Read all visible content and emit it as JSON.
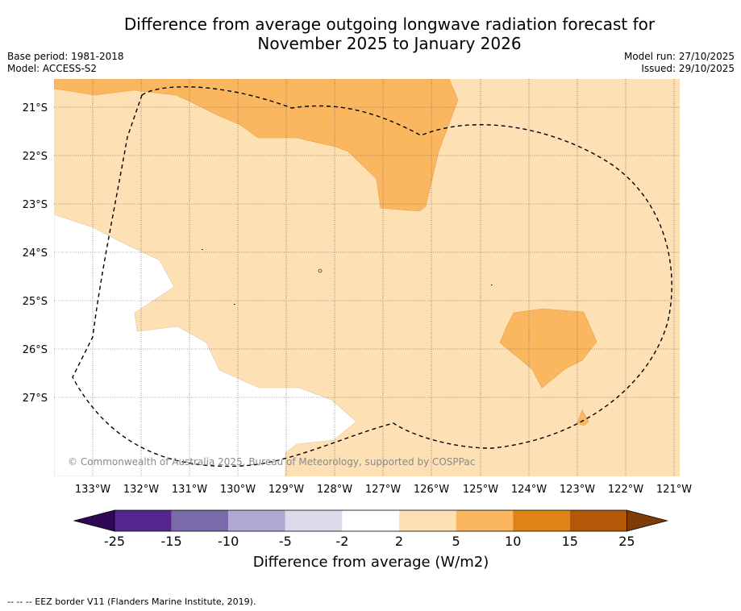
{
  "title_line1": "Difference from average outgoing longwave radiation forecast for",
  "title_line2": "November 2025 to January 2026",
  "base_period": "Base period: 1981-2018",
  "model": "Model: ACCESS-S2",
  "model_run": "Model run: 27/10/2025",
  "issued": "Issued: 29/10/2025",
  "copyright": "© Commonwealth of Australia 2025, Bureau of Meteorology, supported by COSPPac",
  "footnote": "--  --  -- EEZ border V11 (Flanders Marine Institute, 2019).",
  "lat_labels": [
    "21°S",
    "22°S",
    "23°S",
    "24°S",
    "25°S",
    "26°S",
    "27°S"
  ],
  "lon_labels": [
    "133°W",
    "132°W",
    "131°W",
    "130°W",
    "129°W",
    "128°W",
    "127°W",
    "126°W",
    "125°W",
    "124°W",
    "123°W",
    "122°W",
    "121°W"
  ],
  "colorbar": {
    "title": "Difference from average (W/m2)",
    "ticks": [
      "-25",
      "-15",
      "-10",
      "-5",
      "-2",
      "2",
      "5",
      "10",
      "15",
      "25"
    ],
    "colors": [
      "#2e0854",
      "#54278f",
      "#7b6aaa",
      "#b0a9d2",
      "#dadaeb",
      "#ffffff",
      "#fde0b3",
      "#fbb660",
      "#e08214",
      "#b35806",
      "#7f3b08"
    ]
  }
}
